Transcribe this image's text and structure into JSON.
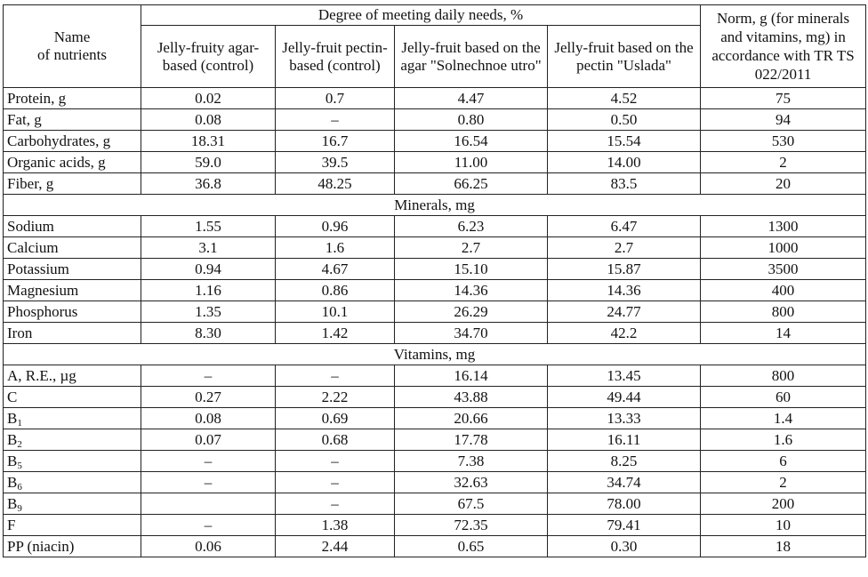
{
  "header": {
    "name_col": "Name\nof nutrients",
    "group": "Degree of meeting daily needs, %",
    "norm_col": "Norm, g (for minerals and vitamins, mg) in accordance with TR TS 022/2011",
    "cols": [
      "Jelly-fruity agar-based (control)",
      "Jelly-fruit pectin-based (control)",
      "Jelly-fruit based on the agar \"Solnechnoe utro\"",
      "Jelly-fruit based on the pectin \"Uslada\""
    ]
  },
  "rows": [
    {
      "type": "data",
      "name": "Protein, g",
      "v": [
        "0.02",
        "0.7",
        "4.47",
        "4.52",
        "75"
      ]
    },
    {
      "type": "data",
      "name": "Fat, g",
      "v": [
        "0.08",
        "–",
        "0.80",
        "0.50",
        "94"
      ]
    },
    {
      "type": "data",
      "name": "Carbohydrates, g",
      "v": [
        "18.31",
        "16.7",
        "16.54",
        "15.54",
        "530"
      ]
    },
    {
      "type": "data",
      "name": "Organic acids, g",
      "v": [
        "59.0",
        "39.5",
        "11.00",
        "14.00",
        "2"
      ]
    },
    {
      "type": "data",
      "name": "Fiber, g",
      "v": [
        "36.8",
        "48.25",
        "66.25",
        "83.5",
        "20"
      ]
    },
    {
      "type": "section",
      "name": "Minerals, mg"
    },
    {
      "type": "data",
      "name": "Sodium",
      "v": [
        "1.55",
        "0.96",
        "6.23",
        "6.47",
        "1300"
      ]
    },
    {
      "type": "data",
      "name": "Calcium",
      "v": [
        "3.1",
        "1.6",
        "2.7",
        "2.7",
        "1000"
      ]
    },
    {
      "type": "data",
      "name": "Potassium",
      "v": [
        "0.94",
        "4.67",
        "15.10",
        "15.87",
        "3500"
      ]
    },
    {
      "type": "data",
      "name": "Magnesium",
      "v": [
        "1.16",
        "0.86",
        "14.36",
        "14.36",
        "400"
      ]
    },
    {
      "type": "data",
      "name": "Phosphorus",
      "v": [
        "1.35",
        "10.1",
        "26.29",
        "24.77",
        "800"
      ]
    },
    {
      "type": "data",
      "name": "Iron",
      "v": [
        "8.30",
        "1.42",
        "34.70",
        "42.2",
        "14"
      ]
    },
    {
      "type": "section",
      "name": "Vitamins, mg"
    },
    {
      "type": "data",
      "name": "A, R.E., µg",
      "v": [
        "–",
        "–",
        "16.14",
        "13.45",
        "800"
      ]
    },
    {
      "type": "data",
      "name": "C",
      "v": [
        "0.27",
        "2.22",
        "43.88",
        "49.44",
        "60"
      ]
    },
    {
      "type": "data",
      "name": "B",
      "sub": "1",
      "v": [
        "0.08",
        "0.69",
        "20.66",
        "13.33",
        "1.4"
      ]
    },
    {
      "type": "data",
      "name": "B",
      "sub": "2",
      "v": [
        "0.07",
        "0.68",
        "17.78",
        "16.11",
        "1.6"
      ]
    },
    {
      "type": "data",
      "name": "B",
      "sub": "5",
      "v": [
        "–",
        "–",
        "7.38",
        "8.25",
        "6"
      ]
    },
    {
      "type": "data",
      "name": "B",
      "sub": "6",
      "v": [
        "–",
        "–",
        "32.63",
        "34.74",
        "2"
      ]
    },
    {
      "type": "data",
      "name": "B",
      "sub": "9",
      "v": [
        "",
        "–",
        "67.5",
        "78.00",
        "200"
      ]
    },
    {
      "type": "data",
      "name": "F",
      "v": [
        "–",
        "1.38",
        "72.35",
        "79.41",
        "10"
      ]
    },
    {
      "type": "data",
      "name": "PP (niacin)",
      "v": [
        "0.06",
        "2.44",
        "0.65",
        "0.30",
        "18"
      ]
    }
  ]
}
